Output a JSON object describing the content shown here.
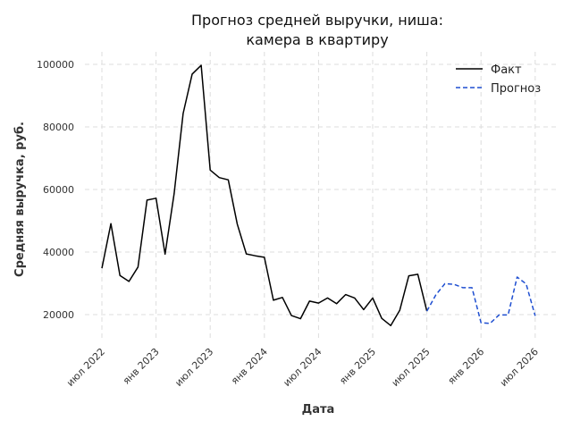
{
  "chart_data": {
    "type": "line",
    "title": [
      "Прогноз средней выручки, ниша:",
      "камера в квартиру"
    ],
    "xlabel": "Дата",
    "ylabel": "Средняя выручка, руб.",
    "x_tick_labels": [
      "июл 2022",
      "янв 2023",
      "июл 2023",
      "янв 2024",
      "июл 2024",
      "янв 2025",
      "июл 2025",
      "янв 2026",
      "июл 2026"
    ],
    "y_tick_labels": [
      "20000",
      "40000",
      "60000",
      "80000",
      "100000"
    ],
    "y_ticks": [
      20000,
      40000,
      60000,
      80000,
      100000
    ],
    "ylim": [
      12000,
      104000
    ],
    "grid": true,
    "legend_position": "top-right",
    "series": [
      {
        "name": "Факт",
        "color": "#000000",
        "style": "solid",
        "x": [
          "2022-07",
          "2022-08",
          "2022-09",
          "2022-10",
          "2022-11",
          "2022-12",
          "2023-01",
          "2023-02",
          "2023-03",
          "2023-04",
          "2023-05",
          "2023-06",
          "2023-07",
          "2023-08",
          "2023-09",
          "2023-10",
          "2023-11",
          "2023-12",
          "2024-01",
          "2024-02",
          "2024-03",
          "2024-04",
          "2024-05",
          "2024-06",
          "2024-07",
          "2024-08",
          "2024-09",
          "2024-10",
          "2024-11",
          "2024-12",
          "2025-01",
          "2025-02",
          "2025-03",
          "2025-04",
          "2025-05",
          "2025-06",
          "2025-07"
        ],
        "values": [
          34800,
          49100,
          32500,
          30600,
          35200,
          56600,
          57200,
          39300,
          58600,
          84300,
          96900,
          99700,
          66200,
          63800,
          63100,
          48900,
          39400,
          38800,
          38300,
          24600,
          25500,
          19700,
          18700,
          24300,
          23700,
          25300,
          23500,
          26400,
          25300,
          21600,
          25300,
          18800,
          16500,
          21400,
          32400,
          32900,
          21100
        ]
      },
      {
        "name": "Прогноз",
        "color": "#1f4fd1",
        "style": "dashed",
        "x": [
          "2025-07",
          "2025-08",
          "2025-09",
          "2025-10",
          "2025-11",
          "2025-12",
          "2026-01",
          "2026-02",
          "2026-03",
          "2026-04",
          "2026-05",
          "2026-06",
          "2026-07"
        ],
        "values": [
          21100,
          26300,
          29900,
          29700,
          28600,
          28600,
          17400,
          17200,
          19900,
          19900,
          32000,
          29800,
          19600
        ]
      }
    ]
  }
}
